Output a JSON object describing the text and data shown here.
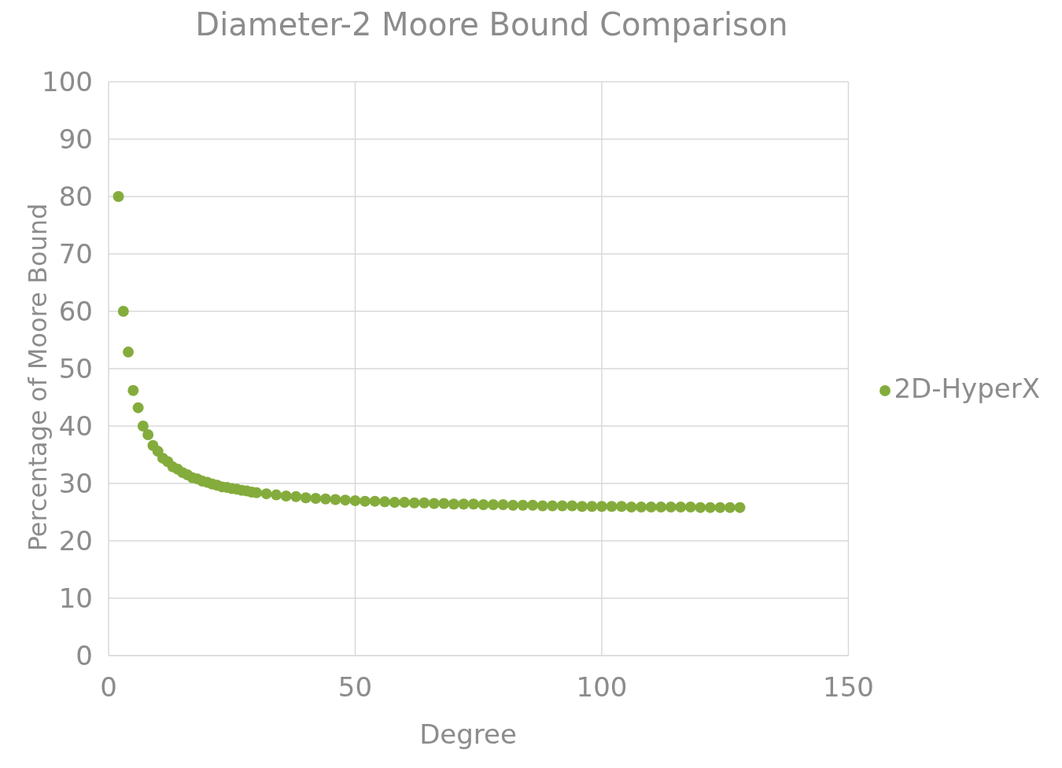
{
  "chart_data": {
    "type": "scatter",
    "title": "Diameter-2 Moore Bound Comparison",
    "xlabel": "Degree",
    "ylabel": "Percentage of Moore Bound",
    "x": [
      2,
      3,
      4,
      5,
      6,
      7,
      8,
      9,
      10,
      11,
      12,
      13,
      14,
      15,
      16,
      17,
      18,
      19,
      20,
      21,
      22,
      23,
      24,
      25,
      26,
      27,
      28,
      29,
      30,
      32,
      34,
      36,
      38,
      40,
      42,
      44,
      46,
      48,
      50,
      52,
      54,
      56,
      58,
      60,
      62,
      64,
      66,
      68,
      70,
      72,
      74,
      76,
      78,
      80,
      82,
      84,
      86,
      88,
      90,
      92,
      94,
      96,
      98,
      100,
      102,
      104,
      106,
      108,
      110,
      112,
      114,
      116,
      118,
      120,
      122,
      124,
      126,
      128
    ],
    "series": [
      {
        "name": "2D-HyperX",
        "color": "#84ac3c",
        "values": [
          80,
          60,
          52.9,
          46.2,
          43.2,
          40,
          38.5,
          36.6,
          35.6,
          34.4,
          33.8,
          32.9,
          32.5,
          31.9,
          31.5,
          31.0,
          30.8,
          30.4,
          30.2,
          29.9,
          29.7,
          29.4,
          29.3,
          29.1,
          29.0,
          28.8,
          28.7,
          28.5,
          28.4,
          28.2,
          28.0,
          27.8,
          27.7,
          27.5,
          27.4,
          27.3,
          27.2,
          27.1,
          27.0,
          26.9,
          26.9,
          26.8,
          26.7,
          26.7,
          26.6,
          26.6,
          26.5,
          26.5,
          26.4,
          26.4,
          26.4,
          26.3,
          26.3,
          26.3,
          26.2,
          26.2,
          26.2,
          26.1,
          26.1,
          26.1,
          26.1,
          26.0,
          26.0,
          26.0,
          26.0,
          26.0,
          25.9,
          25.9,
          25.9,
          25.9,
          25.9,
          25.9,
          25.9,
          25.8,
          25.8,
          25.8,
          25.8,
          25.8
        ]
      }
    ],
    "xlim": [
      0,
      150
    ],
    "xticks": [
      0,
      50,
      100,
      150
    ],
    "ylim": [
      0,
      100
    ],
    "yticks": [
      0,
      10,
      20,
      30,
      40,
      50,
      60,
      70,
      80,
      90,
      100
    ],
    "grid": true,
    "legend": "right",
    "marker": "circle"
  }
}
